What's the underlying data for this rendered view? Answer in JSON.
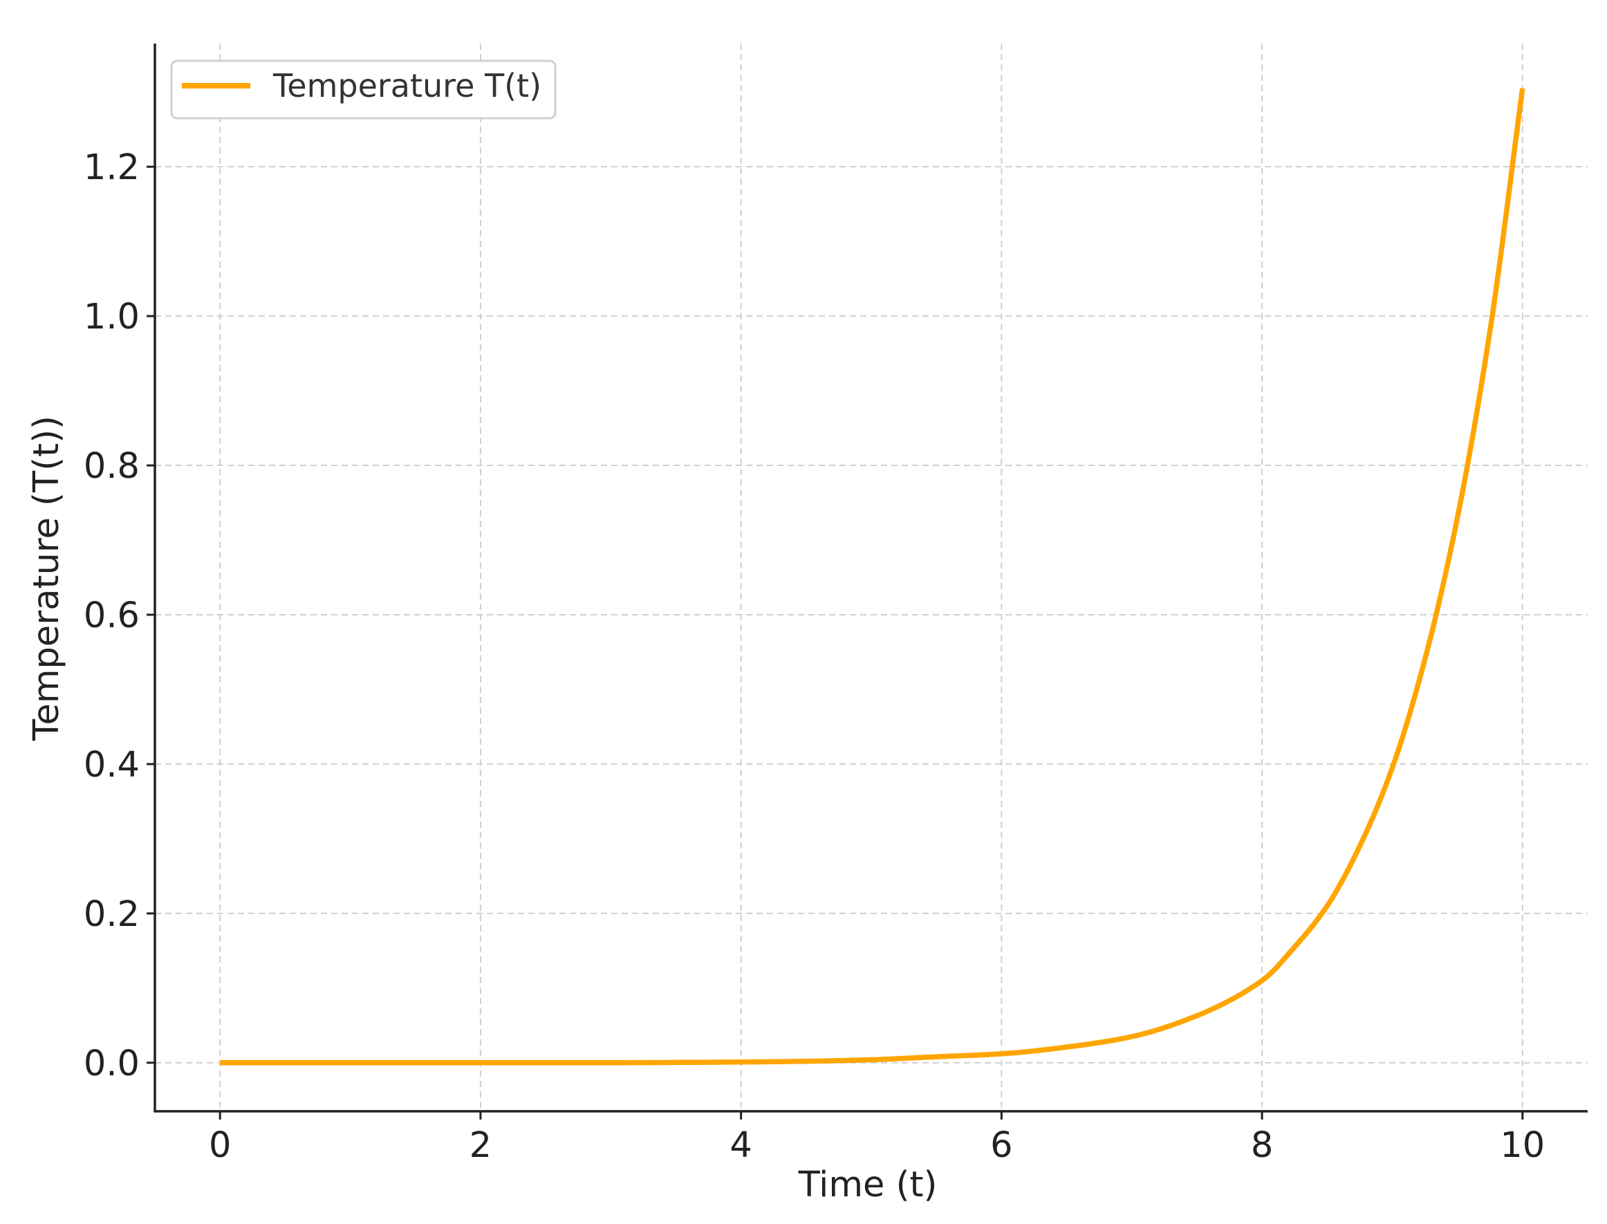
{
  "chart_data": {
    "type": "line",
    "xlabel": "Time (t)",
    "ylabel": "Temperature (T(t))",
    "xlim": [
      -0.5,
      10.5
    ],
    "ylim": [
      -0.065,
      1.365
    ],
    "xticks": [
      "0",
      "2",
      "4",
      "6",
      "8",
      "10"
    ],
    "yticks": [
      "0.0",
      "0.2",
      "0.4",
      "0.6",
      "0.8",
      "1.0",
      "1.2"
    ],
    "grid": true,
    "legend_position": "top-left",
    "series": [
      {
        "name": "Temperature T(t)",
        "color": "#FFA500",
        "x": [
          0,
          1,
          2,
          3,
          4,
          4.5,
          5,
          5.5,
          6,
          6.5,
          7,
          7.5,
          8,
          8.25,
          8.5,
          8.75,
          9,
          9.25,
          9.5,
          9.75,
          10
        ],
        "y": [
          0,
          0,
          0,
          0.0001,
          0.001,
          0.002,
          0.004,
          0.008,
          0.012,
          0.021,
          0.035,
          0.063,
          0.11,
          0.155,
          0.21,
          0.29,
          0.395,
          0.54,
          0.73,
          0.98,
          1.305
        ]
      }
    ]
  }
}
